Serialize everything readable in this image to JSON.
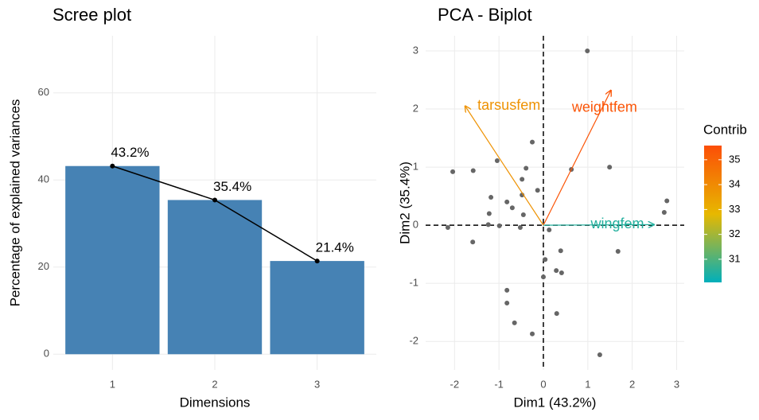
{
  "chart_data": [
    {
      "type": "bar",
      "title": "Scree plot",
      "x_label": "Dimensions",
      "y_label": "Percentage of explained variances",
      "categories": [
        "1",
        "2",
        "3"
      ],
      "values": [
        43.2,
        35.4,
        21.4
      ],
      "value_labels": [
        "43.2%",
        "35.4%",
        "21.4%"
      ],
      "color": "#4682b4",
      "line_color": "#000000",
      "overlay_line": true,
      "ylim": [
        -3.6,
        73.1
      ],
      "yticks": [
        0,
        20,
        40,
        60
      ],
      "grid": true
    },
    {
      "type": "biplot",
      "title": "PCA - Biplot",
      "x_label": "Dim1 (43.2%)",
      "y_label": "Dim2 (35.4%)",
      "xlim": [
        -2.65,
        3.17
      ],
      "xticks": [
        -2,
        -1,
        0,
        1,
        2,
        3
      ],
      "ylim": [
        -2.49,
        3.26
      ],
      "yticks": [
        -2,
        -1,
        0,
        1,
        2,
        3
      ],
      "grid": true,
      "point_color": "#666666",
      "points": {
        "x": [
          0.99,
          -0.25,
          -1.04,
          -2.04,
          -1.58,
          -0.39,
          0.63,
          1.49,
          -0.48,
          -0.13,
          -0.48,
          -1.18,
          -0.82,
          -0.7,
          -1.22,
          -0.45,
          2.78,
          2.72,
          -2.15,
          -1.24,
          -0.99,
          -0.52,
          0.13,
          -1.59,
          0.39,
          1.68,
          0.04,
          0.29,
          0.41,
          0.0,
          -0.82,
          -0.82,
          0.3,
          -0.65,
          -0.25,
          1.27
        ],
        "y": [
          3.0,
          1.43,
          1.11,
          0.92,
          0.94,
          0.98,
          0.96,
          1.0,
          0.79,
          0.6,
          0.52,
          0.48,
          0.4,
          0.3,
          0.2,
          0.18,
          0.42,
          0.22,
          -0.04,
          0.01,
          -0.01,
          -0.04,
          -0.08,
          -0.29,
          -0.44,
          -0.45,
          -0.59,
          -0.78,
          -0.82,
          -0.89,
          -1.12,
          -1.34,
          -1.52,
          -1.68,
          -1.87,
          -2.23
        ]
      },
      "variables": [
        {
          "name": "tarsusfem",
          "x": -1.76,
          "y": 2.05,
          "contrib": 33.8
        },
        {
          "name": "weightfem",
          "x": 1.52,
          "y": 2.32,
          "contrib": 35.4
        },
        {
          "name": "wingfem",
          "x": 2.49,
          "y": 0.01,
          "contrib": 30.5
        }
      ],
      "legend": {
        "title": "Contrib",
        "lim": [
          30.07,
          35.57
        ],
        "ticks": [
          31,
          32,
          33,
          34,
          35
        ],
        "colors": [
          "#00AFBB",
          "#E7B800",
          "#FC4E07"
        ]
      }
    }
  ]
}
